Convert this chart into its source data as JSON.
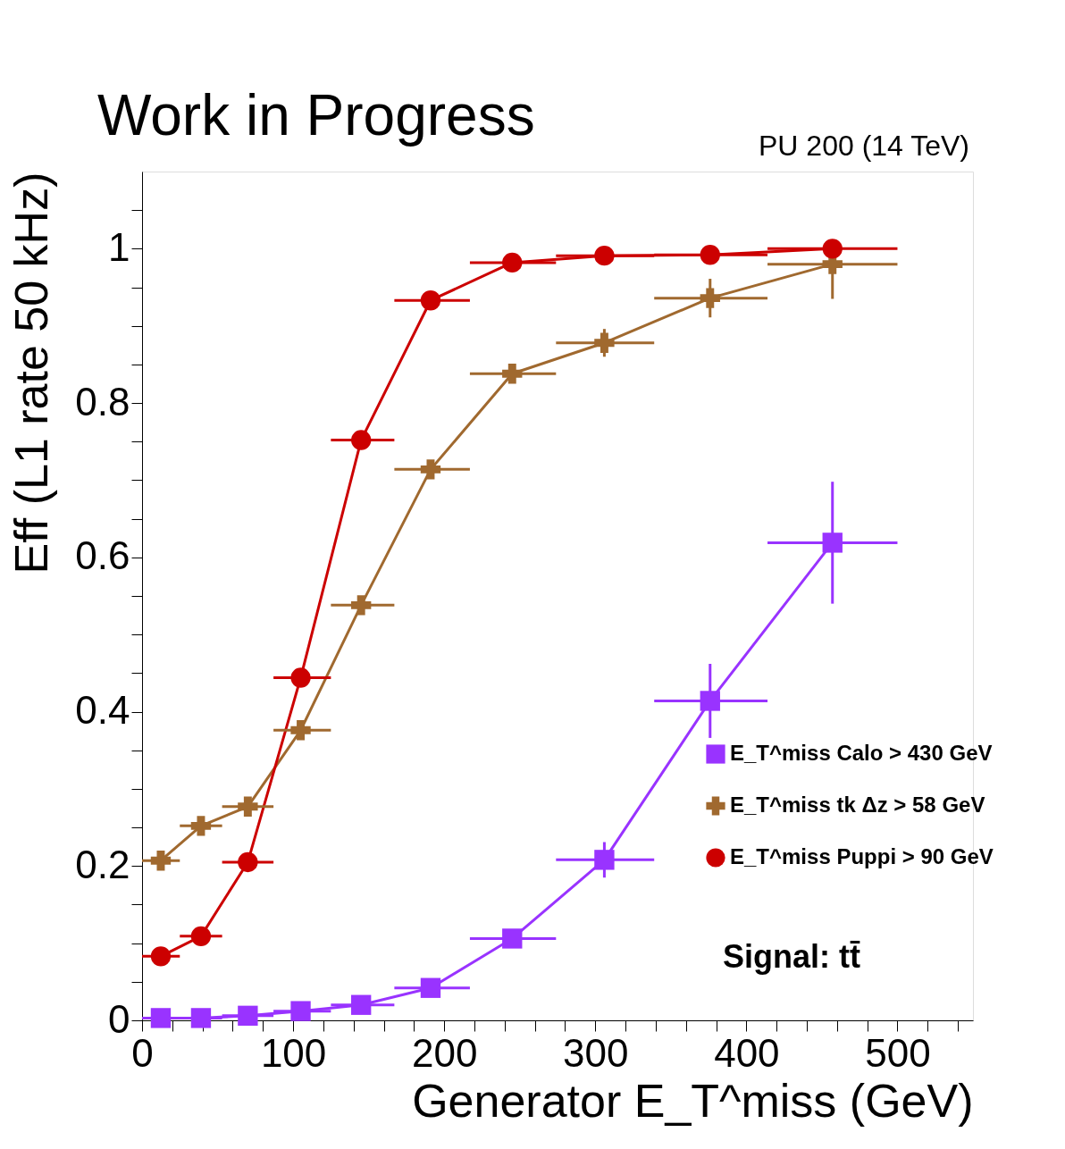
{
  "chart_data": {
    "type": "line",
    "xlabel": "Generator E_T^miss (GeV)",
    "ylabel": "Eff (L1 rate 50 kHz)",
    "annotations": [
      "Work in Progress",
      "PU 200 (14 TeV)",
      "Signal: tt̄"
    ],
    "x": [
      12.4,
      39,
      70,
      105,
      145,
      191,
      245,
      306,
      376,
      457
    ],
    "series": [
      {
        "name": "E_T^miss Calo > 430 GeV",
        "color": "#9933ff",
        "marker": "square",
        "values": [
          0.003,
          0.003,
          0.006,
          0.012,
          0.02,
          0.042,
          0.106,
          0.208,
          0.414,
          0.619
        ],
        "errors": [
          null,
          null,
          null,
          null,
          null,
          null,
          null,
          0.023,
          0.048,
          0.079
        ],
        "xerrors": [
          [
            0,
            25
          ],
          [
            25,
            53
          ],
          [
            53,
            87
          ],
          [
            87,
            125
          ],
          [
            125,
            167
          ],
          [
            167,
            217
          ],
          [
            217,
            274
          ],
          [
            274,
            339
          ],
          [
            339,
            414
          ],
          [
            414,
            500
          ]
        ]
      },
      {
        "name": "E_T^miss tk Δz > 58 GeV",
        "color": "#a0692f",
        "marker": "cross",
        "values": [
          0.207,
          0.252,
          0.277,
          0.376,
          0.538,
          0.714,
          0.838,
          0.878,
          0.936,
          0.98
        ],
        "errors": [
          null,
          null,
          null,
          null,
          null,
          null,
          null,
          0.018,
          0.025,
          [
            0.935,
            0.98
          ]
        ],
        "xerrors": [
          [
            0,
            25
          ],
          [
            25,
            53
          ],
          [
            53,
            87
          ],
          [
            87,
            125
          ],
          [
            125,
            167
          ],
          [
            167,
            217
          ],
          [
            217,
            274
          ],
          [
            274,
            339
          ],
          [
            339,
            414
          ],
          [
            414,
            500
          ]
        ]
      },
      {
        "name": "E_T^miss Puppi > 90 GeV",
        "color": "#cc0000",
        "marker": "circle",
        "values": [
          0.083,
          0.109,
          0.205,
          0.444,
          0.752,
          0.933,
          0.982,
          0.991,
          0.992,
          1.0
        ],
        "xerrors": [
          [
            0,
            25
          ],
          [
            25,
            53
          ],
          [
            53,
            87
          ],
          [
            87,
            125
          ],
          [
            125,
            167
          ],
          [
            167,
            217
          ],
          [
            217,
            274
          ],
          [
            274,
            339
          ],
          [
            339,
            414
          ],
          [
            414,
            500
          ]
        ]
      }
    ],
    "xlim": [
      0,
      550
    ],
    "ylim": [
      0,
      1.1
    ],
    "xticks": [
      0,
      {
        "value": 20,
        "label": null
      },
      {
        "value": 40,
        "label": null
      },
      {
        "value": 60,
        "label": null
      },
      {
        "value": 80,
        "label": null
      },
      100,
      {
        "value": 120,
        "label": null
      },
      {
        "value": 140,
        "label": null
      },
      {
        "value": 160,
        "label": null
      },
      {
        "value": 180,
        "label": null
      },
      200,
      {
        "value": 220,
        "label": null
      },
      {
        "value": 240,
        "label": null
      },
      {
        "value": 260,
        "label": null
      },
      {
        "value": 280,
        "label": null
      },
      300,
      {
        "value": 320,
        "label": null
      },
      {
        "value": 340,
        "label": null
      },
      {
        "value": 360,
        "label": null
      },
      {
        "value": 380,
        "label": null
      },
      400,
      {
        "value": 420,
        "label": null
      },
      {
        "value": 440,
        "label": null
      },
      {
        "value": 460,
        "label": null
      },
      {
        "value": 480,
        "label": null
      },
      500,
      {
        "value": 520,
        "label": null
      },
      {
        "value": 540,
        "label": null
      }
    ],
    "yticks": [
      0,
      {
        "value": 0.05,
        "label": null
      },
      0.2,
      {
        "value": 0.1,
        "label": null
      },
      {
        "value": 0.15,
        "label": null
      },
      {
        "value": 0.25,
        "label": null
      },
      {
        "value": 0.3,
        "label": null
      },
      {
        "value": 0.35,
        "label": null
      },
      0.4,
      {
        "value": 0.45,
        "label": null
      },
      {
        "value": 0.5,
        "label": null
      },
      {
        "value": 0.55,
        "label": null
      },
      0.6,
      {
        "value": 0.65,
        "label": null
      },
      {
        "value": 0.7,
        "label": null
      },
      {
        "value": 0.75,
        "label": null
      },
      0.8,
      {
        "value": 0.85,
        "label": null
      },
      {
        "value": 0.9,
        "label": null
      },
      {
        "value": 0.95,
        "label": null
      },
      1,
      {
        "value": 1.05,
        "label": null
      }
    ],
    "grid": false,
    "legend": "right",
    "line_style": "solid"
  }
}
